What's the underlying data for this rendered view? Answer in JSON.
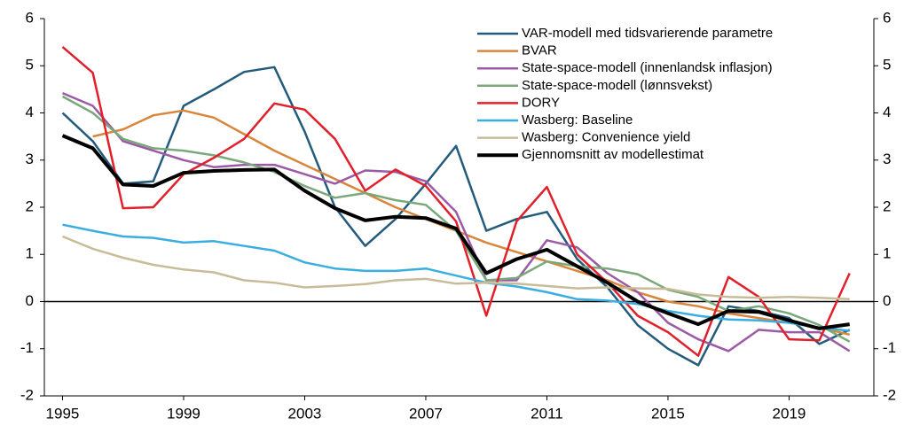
{
  "chart_data": {
    "type": "line",
    "x": [
      1995,
      1996,
      1997,
      1998,
      1999,
      2000,
      2001,
      2002,
      2003,
      2004,
      2005,
      2006,
      2007,
      2008,
      2009,
      2010,
      2011,
      2012,
      2013,
      2014,
      2015,
      2016,
      2017,
      2018,
      2019,
      2020,
      2021
    ],
    "xlim": [
      1994.4,
      2021.8
    ],
    "xticks": [
      1995,
      1999,
      2003,
      2007,
      2011,
      2015,
      2019
    ],
    "ylim": [
      -2,
      6
    ],
    "yticks": [
      -2,
      -1,
      0,
      1,
      2,
      3,
      4,
      5,
      6
    ],
    "y2lim": [
      -2,
      6
    ],
    "y2ticks": [
      -2,
      -1,
      0,
      1,
      2,
      3,
      4,
      5,
      6
    ],
    "legend": "upper right",
    "series": [
      {
        "name": "VAR-modell med tidsvarierende parametre",
        "color": "#235b7c",
        "width": 2.5,
        "values": [
          4.0,
          3.4,
          2.5,
          2.55,
          4.15,
          4.5,
          4.87,
          4.97,
          3.6,
          2.0,
          1.18,
          1.75,
          2.5,
          3.3,
          1.5,
          1.75,
          1.9,
          0.9,
          0.3,
          -0.5,
          -1.0,
          -1.35,
          -0.1,
          -0.2,
          -0.35,
          -0.9,
          -0.6
        ]
      },
      {
        "name": "BVAR",
        "color": "#d9853b",
        "width": 2.5,
        "values": [
          null,
          3.5,
          3.65,
          3.95,
          4.05,
          3.9,
          3.55,
          3.2,
          2.9,
          2.6,
          2.3,
          2.0,
          1.75,
          1.5,
          1.25,
          1.05,
          0.85,
          0.65,
          0.45,
          0.2,
          0.0,
          -0.1,
          -0.25,
          -0.35,
          -0.45,
          -0.55,
          -0.7
        ]
      },
      {
        "name": "State-space-modell (innenlandsk inflasjon)",
        "color": "#9b59a6",
        "width": 2.5,
        "values": [
          4.42,
          4.15,
          3.4,
          3.2,
          3.0,
          2.85,
          2.9,
          2.9,
          2.7,
          2.5,
          2.78,
          2.75,
          2.55,
          1.9,
          0.45,
          0.45,
          1.3,
          1.15,
          0.6,
          0.2,
          -0.45,
          -0.8,
          -1.05,
          -0.6,
          -0.65,
          -0.65,
          -1.05
        ]
      },
      {
        "name": "State-space-modell (lønnsvekst)",
        "color": "#7aa87a",
        "width": 2.5,
        "values": [
          4.35,
          4.0,
          3.45,
          3.25,
          3.2,
          3.1,
          2.95,
          2.75,
          2.45,
          2.2,
          2.3,
          2.15,
          2.05,
          1.5,
          0.45,
          0.5,
          0.85,
          0.75,
          0.7,
          0.58,
          0.25,
          0.1,
          -0.2,
          -0.1,
          -0.25,
          -0.5,
          -0.85
        ]
      },
      {
        "name": "DORY",
        "color": "#e0202a",
        "width": 2.5,
        "values": [
          5.4,
          4.85,
          1.98,
          2.0,
          2.7,
          3.05,
          3.45,
          4.2,
          4.07,
          3.45,
          2.35,
          2.8,
          2.45,
          1.7,
          -0.3,
          1.7,
          2.43,
          1.0,
          0.4,
          -0.3,
          -0.65,
          -1.15,
          0.52,
          0.1,
          -0.8,
          -0.82,
          0.6
        ]
      },
      {
        "name": "Wasberg: Baseline",
        "color": "#3aaee0",
        "width": 2.5,
        "values": [
          1.63,
          1.5,
          1.38,
          1.35,
          1.25,
          1.28,
          1.18,
          1.08,
          0.83,
          0.7,
          0.65,
          0.65,
          0.7,
          0.55,
          0.4,
          0.32,
          0.2,
          0.05,
          0.02,
          -0.05,
          -0.2,
          -0.3,
          -0.38,
          -0.4,
          -0.45,
          -0.55,
          -0.62
        ]
      },
      {
        "name": "Wasberg: Convenience yield",
        "color": "#c8bc98",
        "width": 2.5,
        "values": [
          1.38,
          1.12,
          0.93,
          0.78,
          0.68,
          0.62,
          0.45,
          0.4,
          0.3,
          0.33,
          0.37,
          0.45,
          0.48,
          0.38,
          0.4,
          0.38,
          0.33,
          0.28,
          0.3,
          0.28,
          0.27,
          0.15,
          0.1,
          0.08,
          0.1,
          0.08,
          0.05
        ]
      },
      {
        "name": "Gjennomsnitt av modellestimat",
        "color": "#000000",
        "width": 4,
        "values": [
          3.52,
          3.25,
          2.48,
          2.45,
          2.73,
          2.77,
          2.79,
          2.8,
          2.35,
          1.98,
          1.72,
          1.8,
          1.77,
          1.55,
          0.6,
          0.9,
          1.1,
          0.75,
          0.4,
          0.0,
          -0.25,
          -0.48,
          -0.2,
          -0.22,
          -0.4,
          -0.57,
          -0.48
        ]
      }
    ]
  }
}
